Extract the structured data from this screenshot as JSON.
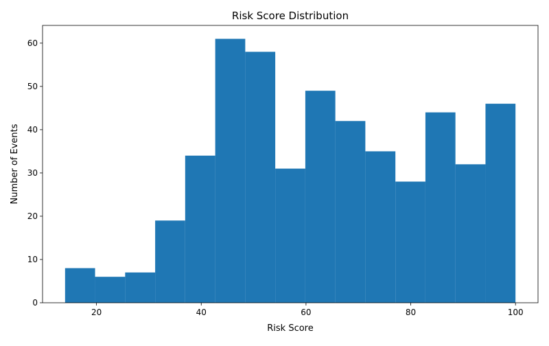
{
  "chart_data": {
    "type": "histogram",
    "title": "Risk Score Distribution",
    "x_label": "Risk Score",
    "y_label": "Number of Events",
    "bins": [
      14,
      19.73,
      25.47,
      31.2,
      36.93,
      42.67,
      48.4,
      54.13,
      59.87,
      65.6,
      71.33,
      77.07,
      82.8,
      88.53,
      94.27,
      100
    ],
    "counts": [
      8,
      6,
      7,
      19,
      34,
      61,
      58,
      31,
      49,
      42,
      35,
      28,
      44,
      32,
      46
    ],
    "color": "#1f77b4",
    "xlim": [
      9.7,
      104.3
    ],
    "xticks": [
      20,
      40,
      60,
      80,
      100
    ],
    "ylim": [
      0,
      64.1
    ],
    "yticks": [
      0,
      10,
      20,
      30,
      40,
      50,
      60
    ]
  }
}
